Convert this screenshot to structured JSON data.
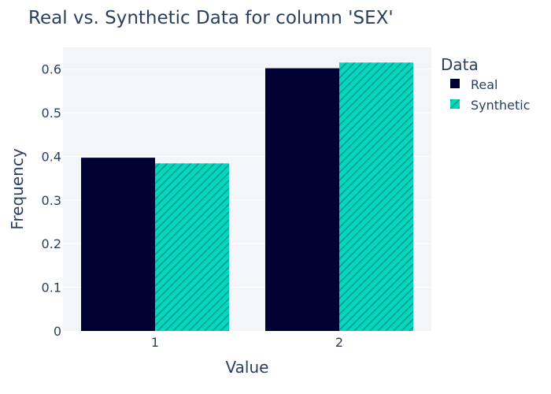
{
  "chart_data": {
    "type": "bar",
    "title": "Real vs. Synthetic Data for column 'SEX'",
    "xlabel": "Value",
    "ylabel": "Frequency",
    "categories": [
      "1",
      "2"
    ],
    "ylim": [
      0,
      0.65
    ],
    "yticks": [
      0,
      0.1,
      0.2,
      0.3,
      0.4,
      0.5,
      0.6
    ],
    "ytick_labels": [
      "0",
      "0.1",
      "0.2",
      "0.3",
      "0.4",
      "0.5",
      "0.6"
    ],
    "grid": true,
    "legend": {
      "title": "Data",
      "placement": "right"
    },
    "series": [
      {
        "name": "Real",
        "values": [
          0.397,
          0.602
        ],
        "color": "#000033",
        "pattern": "none"
      },
      {
        "name": "Synthetic",
        "values": [
          0.384,
          0.615
        ],
        "color": "#00d8c0",
        "pattern": "diagonal-hatch"
      }
    ]
  },
  "colors": {
    "plot_background": "#f4f5f8",
    "gridline": "#ffffff",
    "text": "#2a3f5f",
    "hatch": "#119a8a"
  }
}
